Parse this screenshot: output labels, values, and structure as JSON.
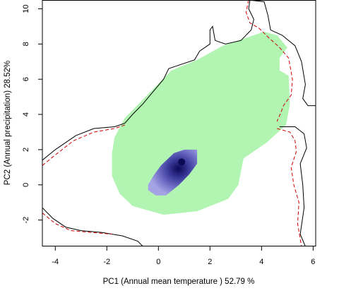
{
  "chart_data": {
    "type": "heatmap",
    "title": "",
    "xlabel": "PC1 (Annual mean temperature ) 52.79 %",
    "ylabel": "PC2 (Annual precipitation) 28.52%",
    "xlim": [
      -4.5,
      6.1
    ],
    "ylim": [
      -3.5,
      10.5
    ],
    "xticks": [
      "-4",
      "-2",
      "0",
      "2",
      "4",
      "6"
    ],
    "yticks": [
      "-2",
      "0",
      "2",
      "4",
      "6",
      "8",
      "10"
    ],
    "grid": false,
    "legend": "none",
    "colors": {
      "background_niche": "#b2f5b2",
      "density_low": "#9f9fe0",
      "density_mid": "#5a5ab8",
      "density_high": "#0a0a55",
      "envelope_solid": "#000000",
      "envelope_dashed": "#cc0000"
    },
    "background_niche_polygon": [
      [
        -1.8,
        1.8
      ],
      [
        -1.8,
        0.5
      ],
      [
        -1.5,
        -0.5
      ],
      [
        -1.0,
        -1.2
      ],
      [
        0.2,
        -1.7
      ],
      [
        1.5,
        -1.5
      ],
      [
        2.7,
        -0.8
      ],
      [
        3.1,
        0.0
      ],
      [
        3.3,
        1.5
      ],
      [
        4.2,
        2.4
      ],
      [
        4.95,
        3.4
      ],
      [
        5.1,
        4.6
      ],
      [
        5.05,
        6.2
      ],
      [
        4.7,
        6.5
      ],
      [
        4.7,
        7.2
      ],
      [
        5.0,
        7.8
      ],
      [
        4.6,
        8.5
      ],
      [
        4.1,
        8.7
      ],
      [
        3.5,
        8.4
      ],
      [
        2.5,
        7.9
      ],
      [
        1.5,
        7.1
      ],
      [
        0.5,
        6.5
      ],
      [
        -0.1,
        5.6
      ],
      [
        -0.9,
        4.4
      ],
      [
        -1.3,
        3.8
      ],
      [
        -1.7,
        2.7
      ]
    ],
    "density_core_polygon": [
      [
        -0.4,
        0.0
      ],
      [
        -0.2,
        0.5
      ],
      [
        0.1,
        1.1
      ],
      [
        0.6,
        1.8
      ],
      [
        1.0,
        2.0
      ],
      [
        1.5,
        2.0
      ],
      [
        1.5,
        1.2
      ],
      [
        1.2,
        0.6
      ],
      [
        0.8,
        0.0
      ],
      [
        0.3,
        -0.6
      ],
      [
        -0.1,
        -0.6
      ],
      [
        -0.4,
        -0.3
      ]
    ],
    "density_peak": [
      0.9,
      1.3
    ],
    "envelope_lines": [
      {
        "style": "solid",
        "points": [
          [
            -4.5,
            1.4
          ],
          [
            -4.0,
            2.0
          ],
          [
            -3.2,
            2.8
          ],
          [
            -2.5,
            3.2
          ],
          [
            -1.7,
            3.3
          ],
          [
            -1.3,
            3.5
          ],
          [
            -1.0,
            4.0
          ],
          [
            -0.6,
            4.6
          ],
          [
            -0.2,
            5.3
          ],
          [
            0.2,
            6.0
          ],
          [
            0.4,
            6.6
          ],
          [
            0.8,
            6.8
          ],
          [
            1.4,
            7.1
          ],
          [
            1.6,
            7.6
          ],
          [
            2.0,
            8.0
          ],
          [
            2.0,
            8.8
          ],
          [
            2.1,
            9.0
          ],
          [
            2.2,
            8.2
          ],
          [
            2.6,
            8.0
          ],
          [
            3.2,
            8.2
          ],
          [
            3.6,
            8.8
          ],
          [
            3.7,
            9.4
          ],
          [
            3.5,
            10.0
          ],
          [
            3.55,
            10.5
          ]
        ]
      },
      {
        "style": "solid",
        "points": [
          [
            3.5,
            10.5
          ],
          [
            4.1,
            10.4
          ],
          [
            4.25,
            9.6
          ],
          [
            4.35,
            8.8
          ],
          [
            4.8,
            8.5
          ],
          [
            5.3,
            7.9
          ],
          [
            5.55,
            7.0
          ],
          [
            5.7,
            5.7
          ],
          [
            5.6,
            4.9
          ],
          [
            5.8,
            4.5
          ],
          [
            6.1,
            4.5
          ]
        ]
      },
      {
        "style": "solid",
        "points": [
          [
            4.7,
            3.3
          ],
          [
            5.3,
            3.3
          ],
          [
            5.65,
            2.9
          ],
          [
            5.75,
            2.1
          ],
          [
            5.5,
            1.2
          ],
          [
            5.6,
            0.0
          ],
          [
            5.65,
            -1.3
          ],
          [
            5.5,
            -2.8
          ],
          [
            5.7,
            -3.5
          ]
        ]
      },
      {
        "style": "solid",
        "points": [
          [
            -4.5,
            -1.3
          ],
          [
            -4.1,
            -1.9
          ],
          [
            -3.6,
            -2.4
          ],
          [
            -3.0,
            -2.6
          ],
          [
            -2.2,
            -2.7
          ],
          [
            -1.4,
            -2.9
          ],
          [
            -0.8,
            -3.2
          ],
          [
            -0.6,
            -3.5
          ]
        ]
      },
      {
        "style": "dashed",
        "points": [
          [
            -4.5,
            1.1
          ],
          [
            -4.0,
            1.7
          ],
          [
            -3.3,
            2.5
          ],
          [
            -2.5,
            3.0
          ],
          [
            -1.7,
            3.2
          ],
          [
            -1.3,
            3.4
          ]
        ]
      },
      {
        "style": "dashed",
        "points": [
          [
            3.5,
            10.5
          ],
          [
            3.4,
            9.8
          ],
          [
            3.55,
            9.2
          ],
          [
            3.9,
            8.9
          ],
          [
            4.25,
            8.4
          ],
          [
            4.7,
            7.8
          ],
          [
            5.05,
            7.2
          ],
          [
            5.2,
            6.0
          ],
          [
            5.15,
            5.1
          ],
          [
            4.85,
            4.5
          ],
          [
            4.75,
            4.1
          ],
          [
            4.6,
            3.6
          ]
        ]
      },
      {
        "style": "dashed",
        "points": [
          [
            4.6,
            3.2
          ],
          [
            5.1,
            3.0
          ],
          [
            5.3,
            2.5
          ],
          [
            5.35,
            1.9
          ],
          [
            5.15,
            1.0
          ],
          [
            5.25,
            0.0
          ],
          [
            5.45,
            -1.0
          ],
          [
            5.4,
            -2.2
          ],
          [
            5.55,
            -3.5
          ]
        ]
      },
      {
        "style": "dashed",
        "points": [
          [
            -4.5,
            -1.6
          ],
          [
            -4.0,
            -2.2
          ],
          [
            -3.4,
            -2.6
          ],
          [
            -2.6,
            -2.7
          ],
          [
            -1.8,
            -2.8
          ]
        ]
      }
    ]
  }
}
